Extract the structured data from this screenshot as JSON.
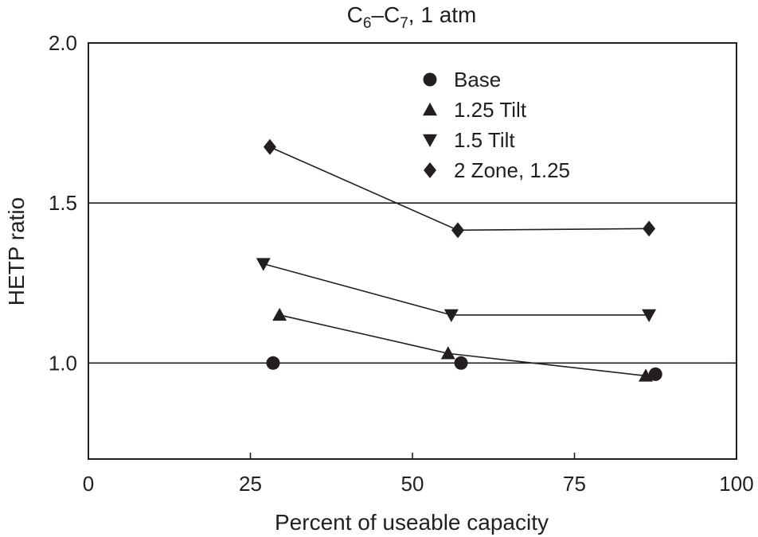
{
  "chart_data": {
    "type": "line",
    "title": {
      "base": "C",
      "sub1": "6",
      "dash": "–C",
      "sub2": "7",
      "tail": ", 1 atm"
    },
    "xlabel": "Percent of useable capacity",
    "ylabel": "HETP ratio",
    "xlim": [
      0,
      100
    ],
    "ylim": [
      0.7,
      2.0
    ],
    "x_ticks": [
      0,
      25,
      50,
      75,
      100
    ],
    "x_tick_labels": [
      "0",
      "25",
      "50",
      "75",
      "100"
    ],
    "y_ticks": [
      1.0,
      1.5,
      2.0
    ],
    "y_tick_labels": [
      "1.0",
      "1.5",
      "2.0"
    ],
    "gridlines_y": [
      1.0,
      1.5
    ],
    "legend_position": "top-center",
    "series": [
      {
        "name": "Base",
        "marker": "circle",
        "connected": false,
        "points": [
          {
            "x": 28.5,
            "y": 1.0
          },
          {
            "x": 57.5,
            "y": 1.0
          },
          {
            "x": 87.5,
            "y": 0.965
          }
        ]
      },
      {
        "name": "1.25 Tilt",
        "marker": "triangle-up",
        "connected": true,
        "points": [
          {
            "x": 29.5,
            "y": 1.15
          },
          {
            "x": 55.5,
            "y": 1.03
          },
          {
            "x": 86.0,
            "y": 0.96
          }
        ]
      },
      {
        "name": "1.5 Tilt",
        "marker": "triangle-down",
        "connected": true,
        "points": [
          {
            "x": 27.0,
            "y": 1.31
          },
          {
            "x": 56.0,
            "y": 1.15
          },
          {
            "x": 86.5,
            "y": 1.15
          }
        ]
      },
      {
        "name": "2 Zone, 1.25",
        "marker": "diamond",
        "connected": true,
        "points": [
          {
            "x": 28.0,
            "y": 1.675
          },
          {
            "x": 57.0,
            "y": 1.415
          },
          {
            "x": 86.5,
            "y": 1.42
          }
        ]
      }
    ]
  }
}
